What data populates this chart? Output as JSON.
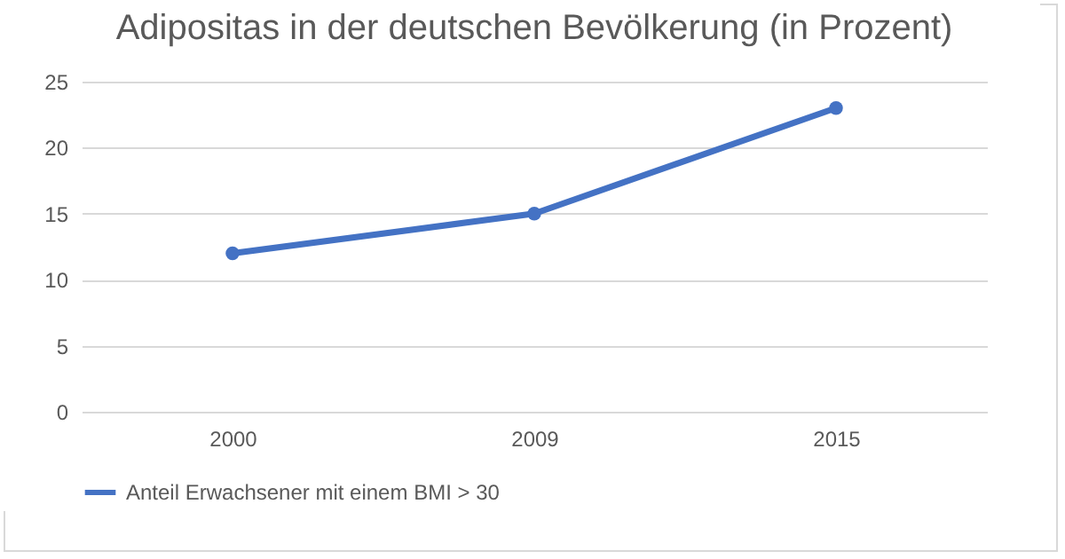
{
  "chart_data": {
    "type": "line",
    "title": "Adipositas in der deutschen Bevölkerung (in Prozent)",
    "categories": [
      "2000",
      "2009",
      "2015"
    ],
    "series": [
      {
        "name": "Anteil Erwachsener mit einem BMI > 30",
        "color": "#4472c4",
        "values": [
          12,
          15,
          23
        ]
      }
    ],
    "ylim": [
      0,
      25
    ],
    "yticks": [
      0,
      5,
      10,
      15,
      20,
      25
    ],
    "grid": "y",
    "legend": "bottom",
    "marker": "circle",
    "line_style": "solid"
  }
}
